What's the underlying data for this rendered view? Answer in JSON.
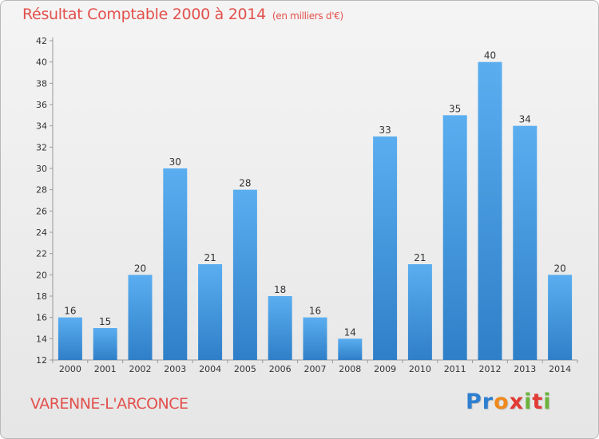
{
  "chart_data": {
    "type": "bar",
    "title": "Résultat Comptable 2000 à 2014",
    "subtitle": "(en milliers d'€)",
    "categories": [
      "2000",
      "2001",
      "2002",
      "2003",
      "2004",
      "2005",
      "2006",
      "2007",
      "2008",
      "2009",
      "2010",
      "2011",
      "2012",
      "2013",
      "2014"
    ],
    "values": [
      16,
      15,
      20,
      30,
      21,
      28,
      18,
      16,
      14,
      33,
      21,
      35,
      40,
      34,
      20
    ],
    "ylim": [
      12,
      42
    ],
    "yticks": [
      12,
      14,
      16,
      18,
      20,
      22,
      24,
      26,
      28,
      30,
      32,
      34,
      36,
      38,
      40,
      42
    ],
    "xlabel": "",
    "ylabel": "",
    "grid": false,
    "bar_color": "#3f8fd6"
  },
  "place_name": "VARENNE-L'ARCONCE",
  "logo": {
    "letters": [
      "P",
      "r",
      "o",
      "x",
      "i",
      "t",
      "i"
    ],
    "colors": [
      "#2e7fd0",
      "#2e7fd0",
      "#ef8a1d",
      "#e23a35",
      "#6bb33a",
      "#e23a35",
      "#6bb33a"
    ]
  }
}
